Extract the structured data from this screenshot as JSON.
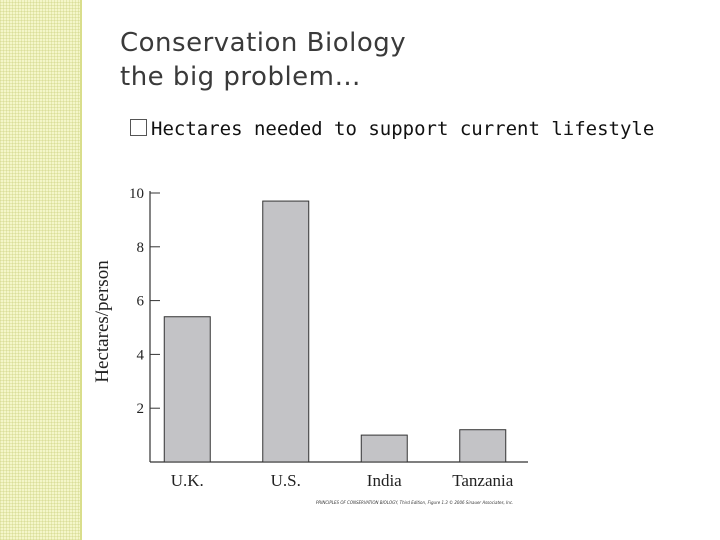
{
  "slide": {
    "title_line1": "Conservation Biology",
    "title_line2": "the big problem…",
    "bullet": "Hectares needed to support current lifestyle",
    "credit": "PRINCIPLES OF CONSERVATION BIOLOGY, Third Edition, Figure 1.3 © 2006 Sinauer Associates, Inc."
  },
  "chart_data": {
    "type": "bar",
    "categories": [
      "U.K.",
      "U.S.",
      "India",
      "Tanzania"
    ],
    "values": [
      5.4,
      9.7,
      1.0,
      1.2
    ],
    "title": "",
    "xlabel": "",
    "ylabel": "Hectares/person",
    "ylim": [
      0,
      10
    ],
    "yticks": [
      2,
      4,
      6,
      8,
      10
    ],
    "bar_color": "#c3c3c6",
    "grid": false,
    "legend": "none"
  }
}
